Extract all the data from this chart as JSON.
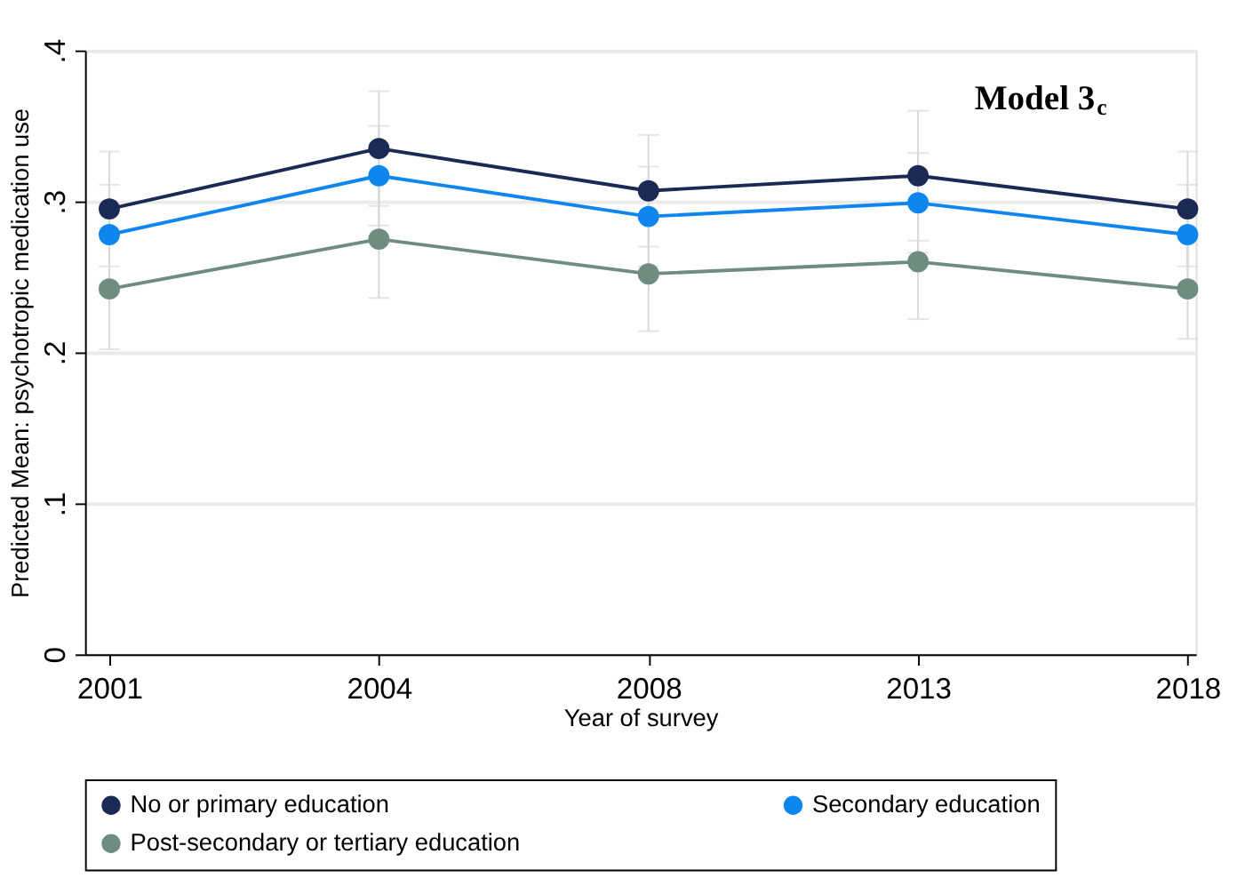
{
  "chart_data": {
    "type": "line",
    "xlabel": "Year of survey",
    "ylabel": "Predicted Mean: psychotropic medication use",
    "categories": [
      "2001",
      "2004",
      "2008",
      "2013",
      "2018"
    ],
    "series": [
      {
        "name": "No or primary education",
        "color": "#1b2a55",
        "values": [
          0.295,
          0.335,
          0.307,
          0.317,
          0.295
        ],
        "errors": [
          0.038,
          0.038,
          0.037,
          0.043,
          0.038
        ]
      },
      {
        "name": "Secondary education",
        "color": "#0f86ee",
        "values": [
          0.278,
          0.317,
          0.29,
          0.299,
          0.278
        ],
        "errors": [
          0.033,
          0.033,
          0.033,
          0.033,
          0.033
        ]
      },
      {
        "name": "Post-secondary or tertiary education",
        "color": "#6f8c80",
        "values": [
          0.242,
          0.275,
          0.252,
          0.26,
          0.242
        ],
        "errors": [
          0.04,
          0.039,
          0.038,
          0.038,
          0.033
        ]
      }
    ],
    "ylim": [
      0,
      0.4
    ],
    "yticks": [
      {
        "value": 0,
        "label": "0"
      },
      {
        "value": 0.1,
        "label": ".1"
      },
      {
        "value": 0.2,
        "label": ".2"
      },
      {
        "value": 0.3,
        "label": ".3"
      },
      {
        "value": 0.4,
        "label": ".4"
      }
    ],
    "grid": "y",
    "legend": "bottom",
    "marker": "circle",
    "line_style": "solid",
    "annotations": [
      "Model 3$_{c}$"
    ]
  }
}
